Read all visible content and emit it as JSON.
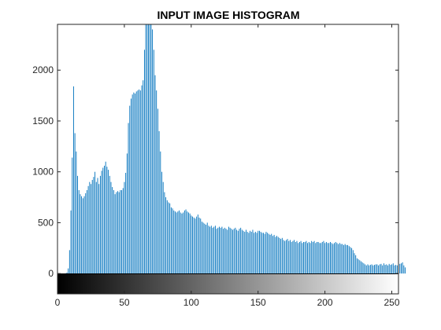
{
  "chart_data": {
    "type": "bar",
    "title": "INPUT IMAGE HISTOGRAM",
    "xlabel": "",
    "ylabel": "",
    "xlim": [
      0,
      255
    ],
    "ylim": [
      -200,
      2450
    ],
    "xticks": [
      "0",
      "50",
      "100",
      "150",
      "200",
      "250"
    ],
    "yticks": [
      "0",
      "500",
      "1000",
      "1500",
      "2000"
    ],
    "bar_color": "#0072BD",
    "colorbar": "grayscale gradient from black (0) to white (255) below the zero line",
    "grid": false,
    "x_start": 0,
    "x_step": 1,
    "values": [
      0,
      0,
      0,
      0,
      0,
      0,
      2,
      10,
      50,
      230,
      620,
      1140,
      1840,
      1380,
      1200,
      960,
      820,
      780,
      760,
      740,
      760,
      790,
      820,
      860,
      900,
      880,
      920,
      950,
      1000,
      900,
      940,
      880,
      960,
      1010,
      1040,
      1060,
      1100,
      1050,
      1020,
      960,
      900,
      850,
      820,
      780,
      800,
      810,
      800,
      820,
      820,
      840,
      900,
      990,
      1180,
      1480,
      1650,
      1720,
      1760,
      1780,
      1770,
      1790,
      1800,
      1810,
      1800,
      1850,
      1900,
      2200,
      2450,
      2450,
      2450,
      2450,
      2450,
      2400,
      2200,
      1950,
      1800,
      1620,
      1400,
      1200,
      1000,
      900,
      800,
      750,
      720,
      700,
      690,
      650,
      640,
      620,
      610,
      600,
      610,
      620,
      600,
      590,
      600,
      620,
      630,
      610,
      600,
      590,
      570,
      560,
      550,
      540,
      560,
      580,
      550,
      540,
      510,
      500,
      490,
      480,
      500,
      470,
      460,
      470,
      450,
      460,
      470,
      440,
      450,
      460,
      450,
      460,
      440,
      450,
      440,
      430,
      460,
      450,
      440,
      430,
      440,
      450,
      430,
      420,
      440,
      450,
      430,
      420,
      410,
      430,
      410,
      400,
      420,
      410,
      430,
      400,
      410,
      400,
      420,
      420,
      410,
      400,
      400,
      390,
      410,
      400,
      390,
      380,
      390,
      370,
      380,
      360,
      370,
      360,
      350,
      340,
      350,
      330,
      320,
      330,
      340,
      320,
      330,
      310,
      320,
      330,
      310,
      320,
      300,
      310,
      320,
      300,
      310,
      310,
      320,
      300,
      310,
      300,
      320,
      310,
      320,
      300,
      310,
      310,
      300,
      300,
      310,
      320,
      300,
      310,
      300,
      300,
      310,
      300,
      290,
      300,
      310,
      300,
      290,
      300,
      290,
      290,
      280,
      290,
      280,
      280,
      270,
      260,
      250,
      230,
      200,
      180,
      150,
      140,
      130,
      120,
      110,
      100,
      90,
      80,
      90,
      80,
      85,
      90,
      80,
      85,
      90,
      90,
      80,
      90,
      95,
      80,
      100,
      85,
      90,
      80,
      95,
      85,
      90,
      100,
      80,
      85,
      80,
      90,
      95,
      100,
      110,
      80,
      60
    ]
  }
}
